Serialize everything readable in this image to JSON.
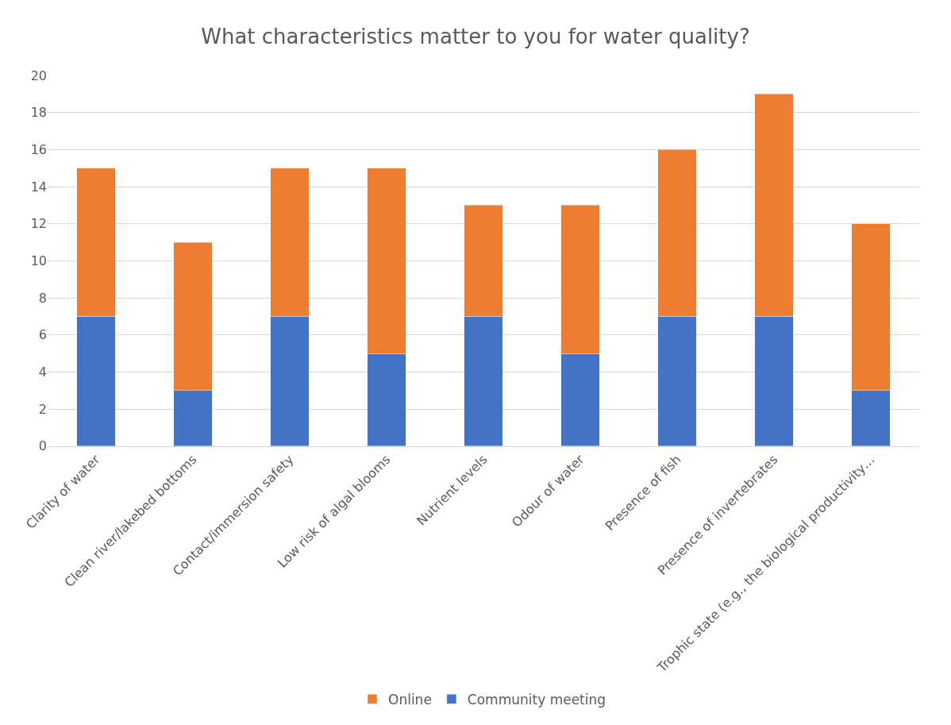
{
  "chart_data": {
    "type": "bar",
    "title": "What characteristics matter to you for water quality?",
    "categories": [
      "Clarity of water",
      "Clean river/lakebed bottoms",
      "Contact/immersion safety",
      "Low risk of algal blooms",
      "Nutrient levels",
      "Odour of water",
      "Presence of fish",
      "Presence of invertebrates",
      "Trophic state (e.g., the biological productivity…"
    ],
    "stacked": true,
    "series": [
      {
        "name": "Community meeting",
        "color": "#4472c4",
        "values": [
          7,
          3,
          7,
          5,
          7,
          5,
          7,
          7,
          3
        ]
      },
      {
        "name": "Online",
        "color": "#ed7d31",
        "values": [
          8,
          8,
          8,
          10,
          6,
          8,
          9,
          12,
          9
        ]
      }
    ],
    "ylim": [
      0,
      20
    ],
    "yticks": [
      0,
      2,
      4,
      6,
      8,
      10,
      12,
      14,
      16,
      18,
      20
    ],
    "grid": "y",
    "legend": "bottom"
  }
}
